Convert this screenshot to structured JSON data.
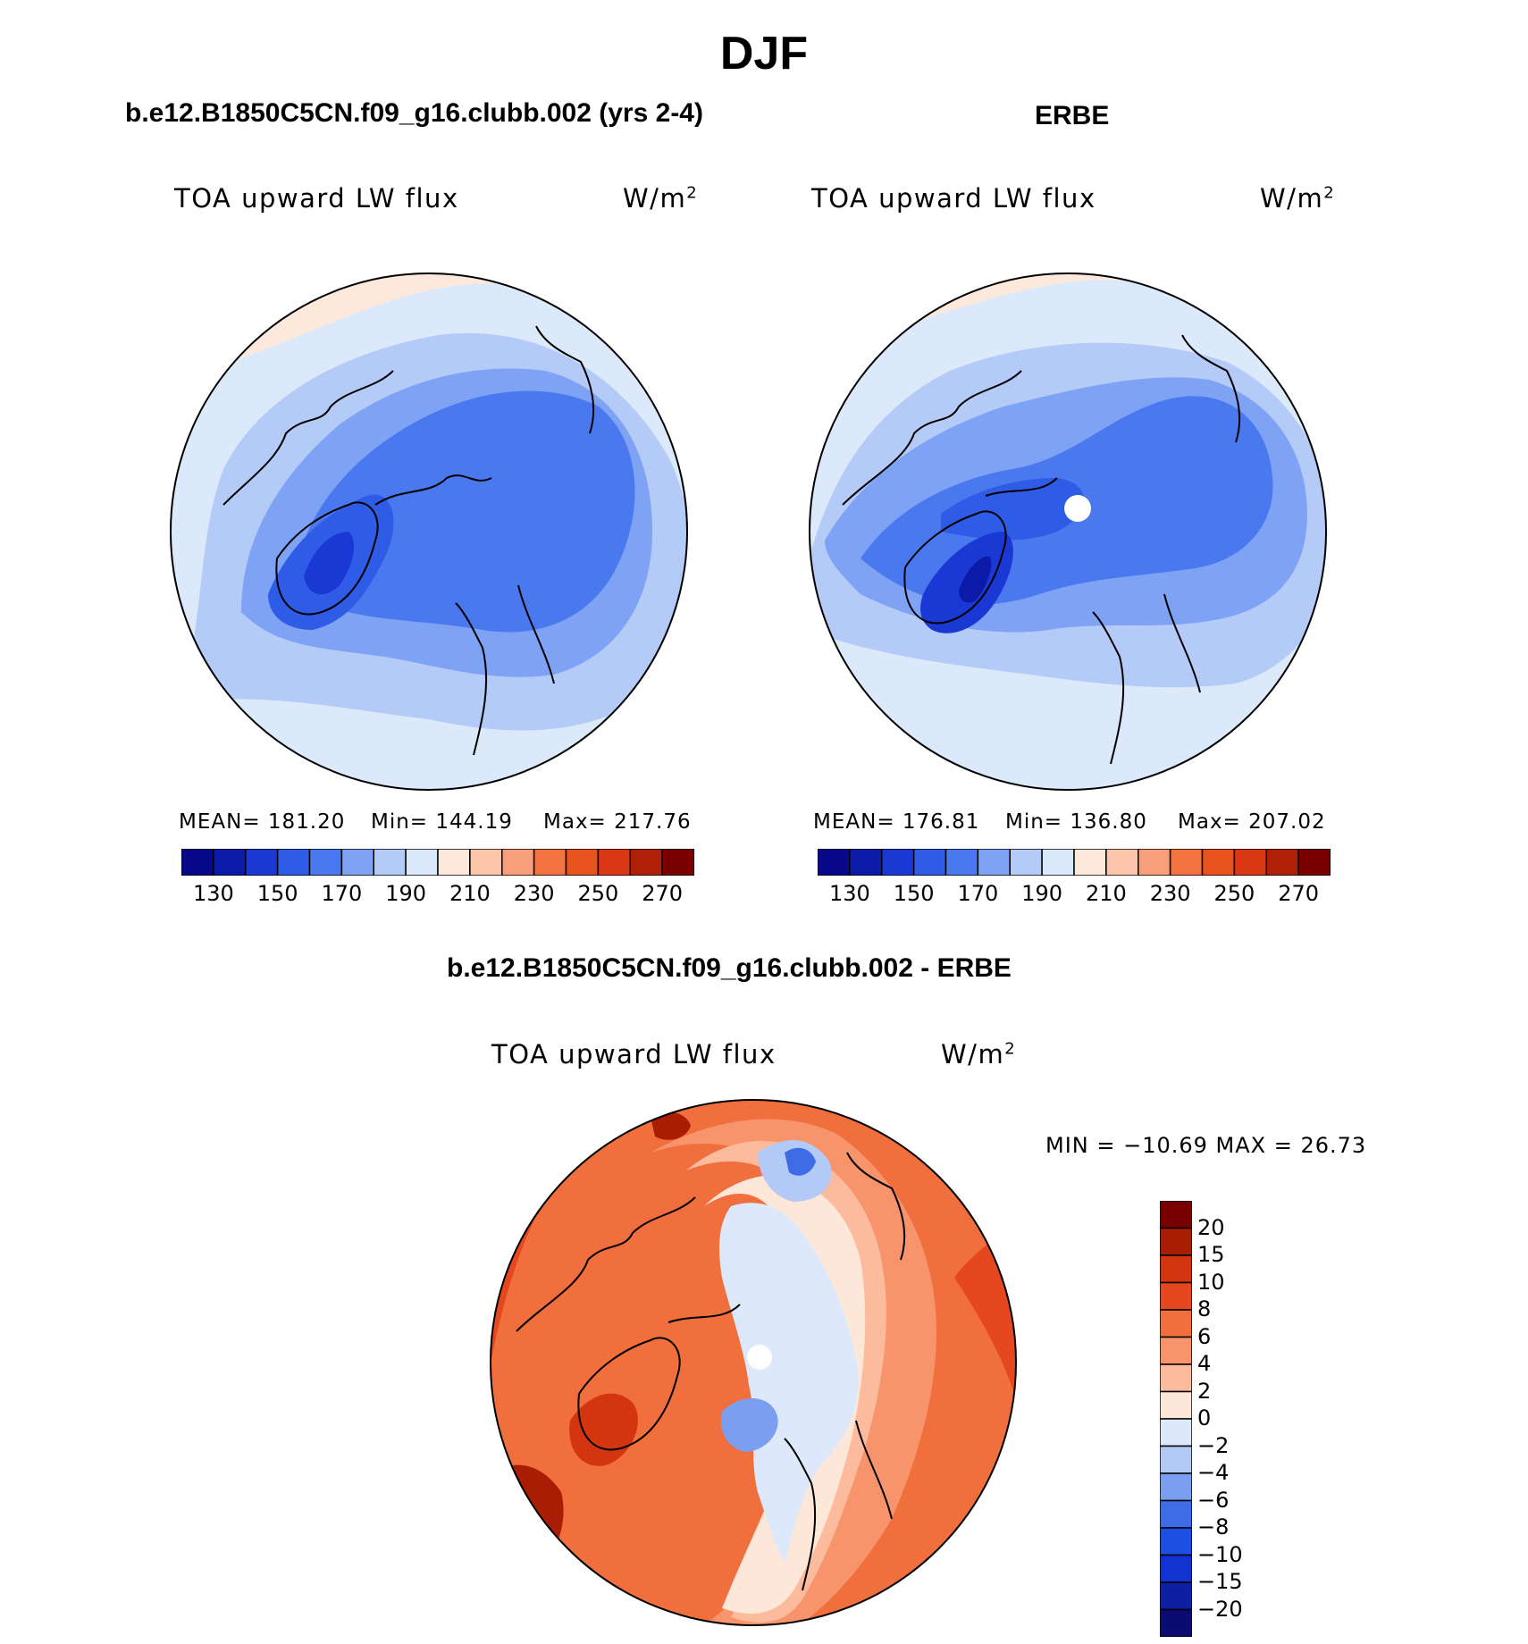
{
  "figure": {
    "title": "DJF"
  },
  "colors": {
    "abs_scale": [
      "#08088a",
      "#0c1aa8",
      "#1a39d4",
      "#2e5ce6",
      "#4a78ef",
      "#7ea2f4",
      "#b4cbf8",
      "#dbe9fb",
      "#fde9dc",
      "#fbc6aa",
      "#f89e78",
      "#f2733f",
      "#e8521d",
      "#d93812",
      "#b01f07",
      "#7a0000"
    ],
    "diff_scale": [
      "#0b0b72",
      "#0f1fa4",
      "#1333d0",
      "#1c4fe2",
      "#3e6ce6",
      "#7a9ff0",
      "#b3c9f6",
      "#dde9fb",
      "#fde7d9",
      "#fbbb9c",
      "#f8946c",
      "#f06f3d",
      "#e5471f",
      "#d3350f",
      "#aa1d05",
      "#7a0000"
    ],
    "land": "#000000",
    "missing": "#ffffff"
  },
  "chart_data": [
    {
      "type": "heatmap",
      "title": "b.e12.B1850C5CN.f09_g16.clubb.002 (yrs 2-4)",
      "label_left": "TOA upward LW flux",
      "units": "W/m",
      "units_exp": "2",
      "projection": "polar-stereographic-north",
      "stats": {
        "mean": "MEAN= 181.20",
        "min": "Min= 144.19",
        "max": "Max= 217.76"
      },
      "colorbar": {
        "orientation": "horizontal",
        "ticks": [
          "130",
          "150",
          "170",
          "190",
          "210",
          "230",
          "250",
          "270"
        ],
        "levels": [
          130,
          140,
          150,
          160,
          170,
          180,
          190,
          200,
          210,
          220,
          230,
          240,
          250,
          260,
          270
        ]
      },
      "value_range": [
        144.19,
        217.76
      ]
    },
    {
      "type": "heatmap",
      "title": "ERBE",
      "label_left": "TOA upward LW flux",
      "units": "W/m",
      "units_exp": "2",
      "projection": "polar-stereographic-north",
      "stats": {
        "mean": "MEAN= 176.81",
        "min": "Min= 136.80",
        "max": "Max= 207.02"
      },
      "colorbar": {
        "orientation": "horizontal",
        "ticks": [
          "130",
          "150",
          "170",
          "190",
          "210",
          "230",
          "250",
          "270"
        ],
        "levels": [
          130,
          140,
          150,
          160,
          170,
          180,
          190,
          200,
          210,
          220,
          230,
          240,
          250,
          260,
          270
        ]
      },
      "value_range": [
        136.8,
        207.02
      ]
    },
    {
      "type": "heatmap",
      "title": "b.e12.B1850C5CN.f09_g16.clubb.002 - ERBE",
      "label_left": "TOA upward LW flux",
      "units": "W/m",
      "units_exp": "2",
      "projection": "polar-stereographic-north",
      "stats": {
        "minmax": "MIN = −10.69 MAX =   26.73"
      },
      "colorbar": {
        "orientation": "vertical",
        "ticks": [
          "20",
          "15",
          "10",
          "8",
          "6",
          "4",
          "2",
          "0",
          "−2",
          "−4",
          "−6",
          "−8",
          "−10",
          "−15",
          "−20"
        ],
        "levels": [
          -20,
          -15,
          -10,
          -8,
          -6,
          -4,
          -2,
          0,
          2,
          4,
          6,
          8,
          10,
          15,
          20
        ]
      },
      "value_range": [
        -10.69,
        26.73
      ]
    }
  ]
}
